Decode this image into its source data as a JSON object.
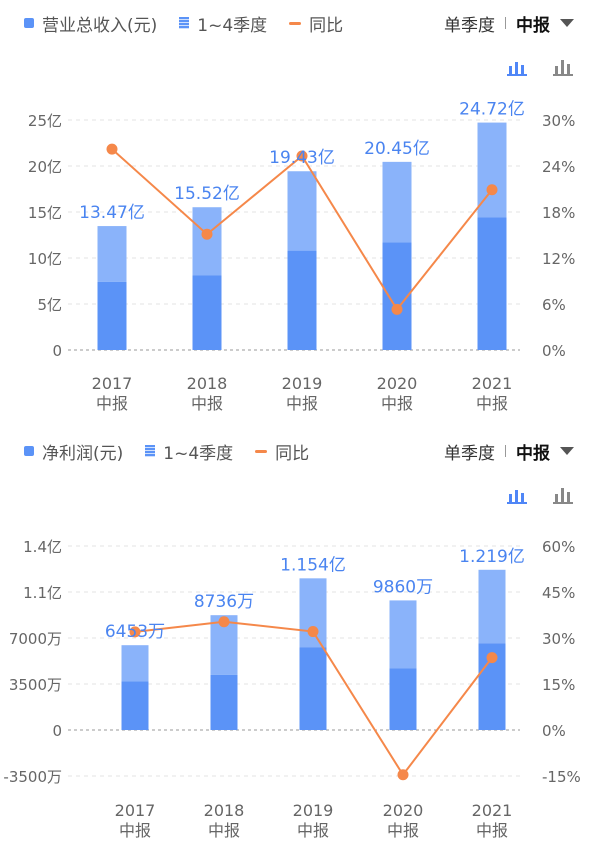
{
  "top": {
    "legend": {
      "bars": "营业总收入(元)",
      "quarters": "1~4季度",
      "yoy": "同比"
    },
    "mode": {
      "single": "单季度",
      "half": "中报"
    },
    "icons": [
      "stacked-bar-chart-icon",
      "bar-chart-icon"
    ]
  },
  "bottom": {
    "legend": {
      "bars": "净利润(元)",
      "quarters": "1~4季度",
      "yoy": "同比"
    },
    "mode": {
      "single": "单季度",
      "half": "中报"
    },
    "icons": [
      "stacked-bar-chart-icon",
      "bar-chart-icon"
    ]
  },
  "chart_data": [
    {
      "type": "bar",
      "categories": [
        "2017\n中报",
        "2018\n中报",
        "2019\n中报",
        "2020\n中报",
        "2021\n中报"
      ],
      "series": [
        {
          "name": "1~4季度",
          "stack_low_yi": [
            7.4,
            8.1,
            10.8,
            11.7,
            14.4
          ],
          "total_yi": [
            13.47,
            15.52,
            19.43,
            20.45,
            24.72
          ]
        },
        {
          "name": "同比",
          "axis": "right",
          "values_pct": [
            26.2,
            15.1,
            25.3,
            5.3,
            20.9
          ]
        }
      ],
      "data_labels": [
        "13.47亿",
        "15.52亿",
        "19.43亿",
        "20.45亿",
        "24.72亿"
      ],
      "y_left_ticks": [
        "0",
        "5亿",
        "10亿",
        "15亿",
        "20亿",
        "25亿"
      ],
      "y_right_ticks": [
        "0%",
        "6%",
        "12%",
        "18%",
        "24%",
        "30%"
      ],
      "ylim_left": [
        0,
        25
      ],
      "ylim_right": [
        0,
        30
      ],
      "colors": {
        "bar_dark": "#5b93f7",
        "bar_light": "#8ab3fa",
        "line": "#f5884a",
        "label": "#4a84f0"
      }
    },
    {
      "type": "bar",
      "categories": [
        "2017\n中报",
        "2018\n中报",
        "2019\n中报",
        "2020\n中报",
        "2021\n中报"
      ],
      "series": [
        {
          "name": "1~4季度",
          "stack_low_wan": [
            3700,
            4200,
            6300,
            4700,
            6600
          ],
          "total_wan": [
            6453,
            8736,
            11540,
            9860,
            12190
          ]
        },
        {
          "name": "同比",
          "axis": "right",
          "values_pct": [
            32.0,
            35.3,
            32.1,
            -14.6,
            23.6
          ]
        }
      ],
      "data_labels": [
        "6453万",
        "8736万",
        "1.154亿",
        "9860万",
        "1.219亿"
      ],
      "y_left_ticks": [
        "-3500万",
        "0",
        "3500万",
        "7000万",
        "1.1亿",
        "1.4亿"
      ],
      "y_right_ticks": [
        "-15%",
        "0%",
        "15%",
        "30%",
        "45%",
        "60%"
      ],
      "ylim_left": [
        -3500,
        14000
      ],
      "ylim_right": [
        -15,
        60
      ],
      "colors": {
        "bar_dark": "#5b93f7",
        "bar_light": "#8ab3fa",
        "line": "#f5884a",
        "label": "#4a84f0"
      }
    }
  ]
}
